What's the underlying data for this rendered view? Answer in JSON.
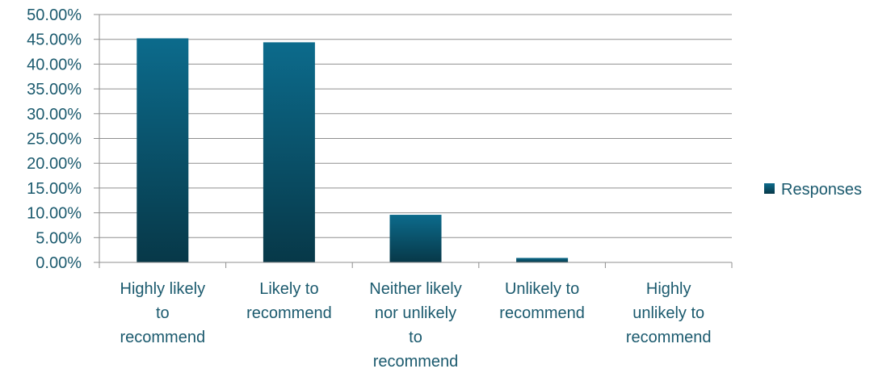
{
  "chart_data": {
    "type": "bar",
    "categories": [
      "Highly likely to recommend",
      "Likely to recommend",
      "Neither likely nor unlikely to recommend",
      "Unlikely to recommend",
      "Highly unlikely to recommend"
    ],
    "category_lines": [
      [
        "Highly likely",
        "to",
        "recommend"
      ],
      [
        "Likely to",
        "recommend"
      ],
      [
        "Neither likely",
        "nor unlikely",
        "to",
        "recommend"
      ],
      [
        "Unlikely to",
        "recommend"
      ],
      [
        "Highly",
        "unlikely to",
        "recommend"
      ]
    ],
    "series": [
      {
        "name": "Responses",
        "values": [
          45.2,
          44.4,
          9.6,
          0.9,
          0.0
        ]
      }
    ],
    "yticks": [
      "0.00%",
      "5.00%",
      "10.00%",
      "15.00%",
      "20.00%",
      "25.00%",
      "30.00%",
      "35.00%",
      "40.00%",
      "45.00%",
      "50.00%"
    ],
    "ylim": [
      0,
      50
    ],
    "grid": true,
    "legend_position": "right",
    "colors": {
      "bar_top": "#0c6b8c",
      "bar_bottom": "#073848",
      "grid": "#8f8f8f",
      "text": "#1b5a6e"
    }
  }
}
